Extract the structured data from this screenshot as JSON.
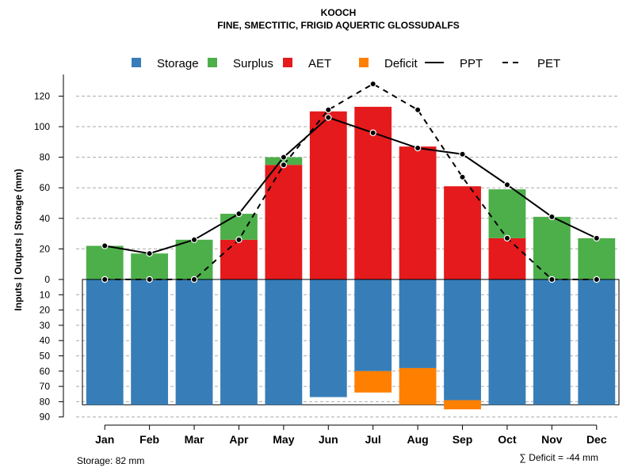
{
  "chart_data": {
    "type": "bar",
    "title": "KOOCH",
    "subtitle": "FINE, SMECTITIC, FRIGID AQUERTIC GLOSSUDALFS",
    "ylabel": "Inputs | Outputs | Storage    (mm)",
    "categories": [
      "Jan",
      "Feb",
      "Mar",
      "Apr",
      "May",
      "Jun",
      "Jul",
      "Aug",
      "Sep",
      "Oct",
      "Nov",
      "Dec"
    ],
    "yticks_up": [
      "0",
      "20",
      "40",
      "60",
      "80",
      "100",
      "120"
    ],
    "yticks_down": [
      "10",
      "20",
      "30",
      "40",
      "50",
      "60",
      "70",
      "80",
      "90"
    ],
    "ylim_up": [
      0,
      130
    ],
    "ylim_down": [
      0,
      90
    ],
    "legend": [
      {
        "name": "Storage",
        "kind": "square",
        "color": "#377EB8"
      },
      {
        "name": "Surplus",
        "kind": "square",
        "color": "#4DAF4A"
      },
      {
        "name": "AET",
        "kind": "square",
        "color": "#E41A1C"
      },
      {
        "name": "Deficit",
        "kind": "square",
        "color": "#FF7F00"
      },
      {
        "name": "PPT",
        "kind": "solid-line",
        "color": "#000000"
      },
      {
        "name": "PET",
        "kind": "dashed-line",
        "color": "#000000"
      }
    ],
    "series": [
      {
        "name": "AET",
        "color": "#E41A1C",
        "values": [
          0,
          0,
          0,
          26,
          75,
          110,
          113,
          87,
          61,
          27,
          0,
          0
        ]
      },
      {
        "name": "Surplus",
        "color": "#4DAF4A",
        "values": [
          22,
          17,
          26,
          17,
          5,
          0,
          0,
          0,
          0,
          32,
          41,
          27
        ]
      },
      {
        "name": "Storage",
        "color": "#377EB8",
        "values": [
          82,
          82,
          82,
          82,
          82,
          77,
          60,
          58,
          79,
          82,
          82,
          82
        ]
      },
      {
        "name": "Deficit",
        "color": "#FF7F00",
        "values": [
          0,
          0,
          0,
          0,
          0,
          0,
          14,
          24,
          6,
          0,
          0,
          0
        ]
      },
      {
        "name": "PPT",
        "color": "#000000",
        "values": [
          22,
          17,
          26,
          43,
          80,
          106,
          96,
          86,
          82,
          62,
          41,
          27
        ]
      },
      {
        "name": "PET",
        "color": "#000000",
        "values": [
          0,
          0,
          0,
          26,
          75,
          111,
          128,
          111,
          67,
          27,
          0,
          0
        ]
      }
    ],
    "storage_capacity": 82
  },
  "footer": {
    "storage_label": "Storage: 82 mm",
    "deficit_label": "∑ Deficit = -44 mm"
  }
}
